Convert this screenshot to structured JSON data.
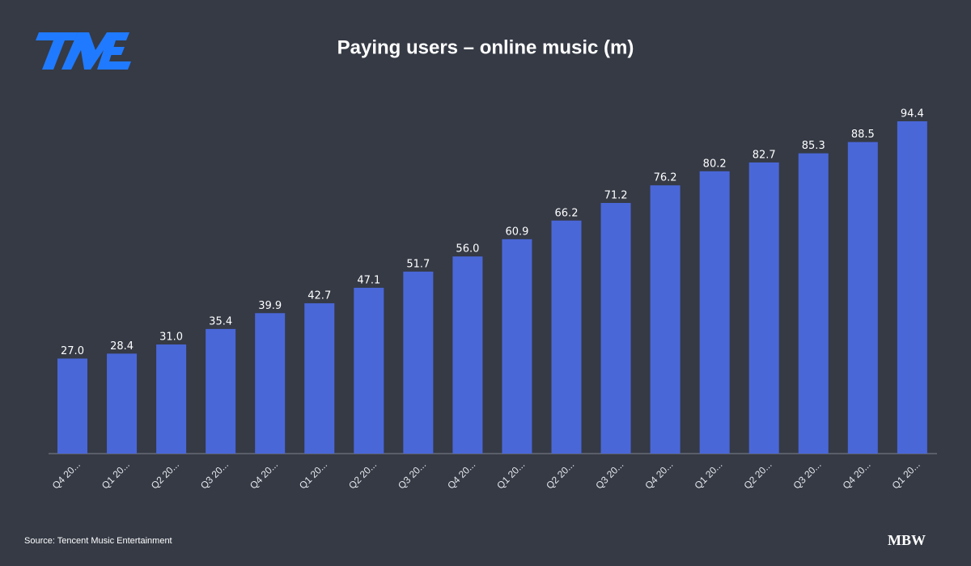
{
  "chart_data": {
    "type": "bar",
    "title": "Paying users – online music (m)",
    "categories": [
      "Q4 20...",
      "Q1 20...",
      "Q2 20...",
      "Q3 20...",
      "Q4 20...",
      "Q1 20...",
      "Q2 20...",
      "Q3 20...",
      "Q4 20...",
      "Q1 20...",
      "Q2 20...",
      "Q3 20...",
      "Q4 20...",
      "Q1 20...",
      "Q2 20...",
      "Q3 20...",
      "Q4 20...",
      "Q1 20..."
    ],
    "values": [
      27,
      28.4,
      31,
      35.4,
      39.9,
      42.7,
      47.1,
      51.7,
      56,
      60.9,
      66.2,
      71.2,
      76.2,
      80.2,
      82.7,
      85.3,
      88.5,
      94.4
    ],
    "value_labels": [
      "27.0",
      "28.4",
      "31.0",
      "35.4",
      "39.9",
      "42.7",
      "47.1",
      "51.7",
      "56.0",
      "60.9",
      "66.2",
      "71.2",
      "76.2",
      "80.2",
      "82.7",
      "85.3",
      "88.5",
      "94.4"
    ],
    "color": "#4a67d8",
    "source": "Source: Tencent Music Entertainment",
    "brand": "MBW"
  }
}
